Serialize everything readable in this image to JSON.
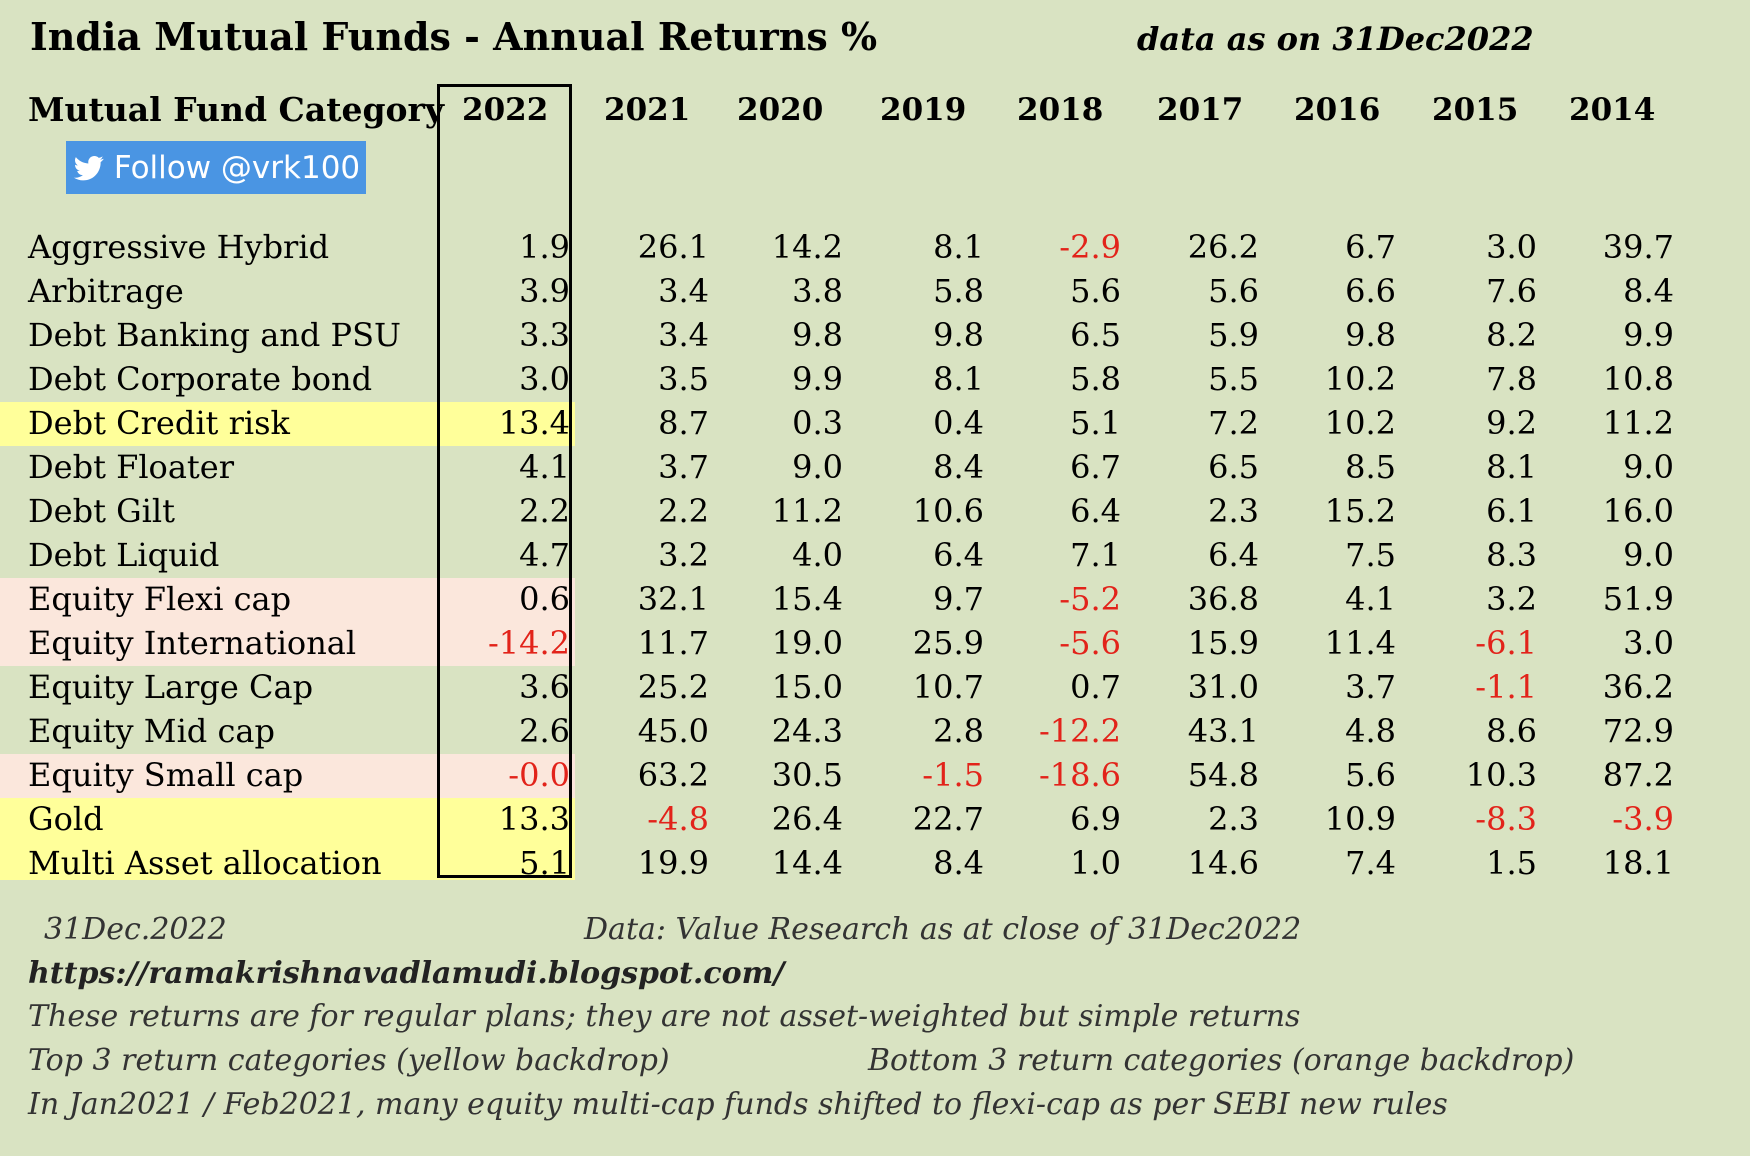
{
  "title": "India Mutual Funds - Annual Returns %",
  "as_of": "data as on 31Dec2022",
  "category_header": "Mutual Fund Category",
  "years": [
    "2022",
    "2021",
    "2020",
    "2019",
    "2018",
    "2017",
    "2016",
    "2015",
    "2014"
  ],
  "follow_button": {
    "label": "Follow @vrk100",
    "icon": "twitter-bird-icon",
    "color": "#4a95e3"
  },
  "colors": {
    "background": "#d9e3c2",
    "yellow": "#ffff9a",
    "orange": "#fbe7dc",
    "negative": "#e2231a"
  },
  "rows": [
    {
      "category": "Aggressive Hybrid",
      "highlight": "none",
      "values": [
        "1.9",
        "26.1",
        "14.2",
        "8.1",
        "-2.9",
        "26.2",
        "6.7",
        "3.0",
        "39.7"
      ]
    },
    {
      "category": "Arbitrage",
      "highlight": "none",
      "values": [
        "3.9",
        "3.4",
        "3.8",
        "5.8",
        "5.6",
        "5.6",
        "6.6",
        "7.6",
        "8.4"
      ]
    },
    {
      "category": "Debt Banking and PSU",
      "highlight": "none",
      "values": [
        "3.3",
        "3.4",
        "9.8",
        "9.8",
        "6.5",
        "5.9",
        "9.8",
        "8.2",
        "9.9"
      ]
    },
    {
      "category": "Debt Corporate bond",
      "highlight": "none",
      "values": [
        "3.0",
        "3.5",
        "9.9",
        "8.1",
        "5.8",
        "5.5",
        "10.2",
        "7.8",
        "10.8"
      ]
    },
    {
      "category": "Debt Credit risk",
      "highlight": "yellow",
      "values": [
        "13.4",
        "8.7",
        "0.3",
        "0.4",
        "5.1",
        "7.2",
        "10.2",
        "9.2",
        "11.2"
      ]
    },
    {
      "category": "Debt Floater",
      "highlight": "none",
      "values": [
        "4.1",
        "3.7",
        "9.0",
        "8.4",
        "6.7",
        "6.5",
        "8.5",
        "8.1",
        "9.0"
      ]
    },
    {
      "category": "Debt Gilt",
      "highlight": "none",
      "values": [
        "2.2",
        "2.2",
        "11.2",
        "10.6",
        "6.4",
        "2.3",
        "15.2",
        "6.1",
        "16.0"
      ]
    },
    {
      "category": "Debt Liquid",
      "highlight": "none",
      "values": [
        "4.7",
        "3.2",
        "4.0",
        "6.4",
        "7.1",
        "6.4",
        "7.5",
        "8.3",
        "9.0"
      ]
    },
    {
      "category": "Equity Flexi cap",
      "highlight": "orange",
      "values": [
        "0.6",
        "32.1",
        "15.4",
        "9.7",
        "-5.2",
        "36.8",
        "4.1",
        "3.2",
        "51.9"
      ]
    },
    {
      "category": "Equity International",
      "highlight": "orange",
      "values": [
        "-14.2",
        "11.7",
        "19.0",
        "25.9",
        "-5.6",
        "15.9",
        "11.4",
        "-6.1",
        "3.0"
      ]
    },
    {
      "category": "Equity Large Cap",
      "highlight": "none",
      "values": [
        "3.6",
        "25.2",
        "15.0",
        "10.7",
        "0.7",
        "31.0",
        "3.7",
        "-1.1",
        "36.2"
      ]
    },
    {
      "category": "Equity Mid cap",
      "highlight": "none",
      "values": [
        "2.6",
        "45.0",
        "24.3",
        "2.8",
        "-12.2",
        "43.1",
        "4.8",
        "8.6",
        "72.9"
      ]
    },
    {
      "category": "Equity Small cap",
      "highlight": "orange",
      "values": [
        "-0.0",
        "63.2",
        "30.5",
        "-1.5",
        "-18.6",
        "54.8",
        "5.6",
        "10.3",
        "87.2"
      ]
    },
    {
      "category": "Gold",
      "highlight": "yellow",
      "values": [
        "13.3",
        "-4.8",
        "26.4",
        "22.7",
        "6.9",
        "2.3",
        "10.9",
        "-8.3",
        "-3.9"
      ]
    },
    {
      "category": "Multi Asset allocation",
      "highlight": "yellow",
      "values": [
        "5.1",
        "19.9",
        "14.4",
        "8.4",
        "1.0",
        "14.6",
        "7.4",
        "1.5",
        "18.1"
      ]
    }
  ],
  "footer": {
    "date": "31Dec.2022",
    "source": "Data: Value Research as at close of 31Dec2022",
    "url": "https://ramakrishnavadlamudi.blogspot.com/",
    "note1": "These returns are for regular plans; they are not asset-weighted but simple returns",
    "note2_left": "Top 3 return categories (yellow backdrop)",
    "note2_right": "Bottom 3 return categories (orange backdrop)",
    "note3": "In Jan2021 / Feb2021, many equity multi-cap funds shifted to flexi-cap as per SEBI new rules"
  }
}
